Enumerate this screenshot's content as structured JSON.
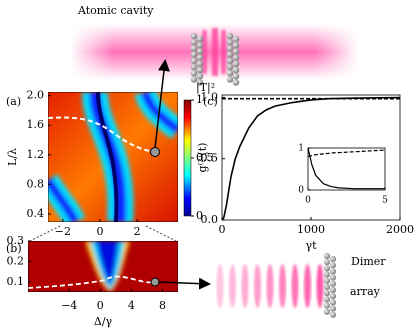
{
  "labels": {
    "cavity": "Atomic cavity",
    "dimer": "Dimer",
    "array": "array"
  },
  "chart_data": [
    {
      "type": "heatmap",
      "panel": "(a)",
      "y_label": "L/λ",
      "xlim": [
        -2.8,
        4.2
      ],
      "xticks": [
        {
          "value": -2,
          "label": "−2"
        },
        0,
        2
      ],
      "ylim": [
        0.29,
        2.05
      ],
      "yticks": [
        0.4,
        0.8,
        1.2,
        1.6,
        {
          "value": 2,
          "label": "2.0"
        }
      ],
      "colorbar": {
        "label": "|T|²",
        "lim": [
          0,
          1
        ],
        "ticks": [
          0,
          0.5,
          1
        ]
      }
    },
    {
      "type": "heatmap",
      "panel": "(b)",
      "x_label": "Δ/γ",
      "xlim": [
        -9.3,
        10
      ],
      "xticks": [
        {
          "value": -4,
          "label": "−4"
        },
        0,
        4,
        8
      ],
      "ylim": [
        0.05,
        0.3
      ],
      "yticks": [
        0.1,
        0.2,
        0.3
      ]
    },
    {
      "type": "line",
      "panel": "(c)",
      "x_label": "γt",
      "y_label": "g⁽²⁾(t)",
      "x": [
        0,
        20,
        50,
        100,
        150,
        200,
        300,
        400,
        500,
        600,
        800,
        1000,
        1200,
        1500,
        2000
      ],
      "xlim": [
        0,
        2000
      ],
      "xticks": [
        0,
        1000,
        2000
      ],
      "ylim": [
        0,
        1.02
      ],
      "yticks": [
        {
          "value": 0,
          "label": "0.0"
        },
        0.5,
        {
          "value": 1,
          "label": "1.0"
        }
      ],
      "series": [
        {
          "color": "#000000",
          "dash": false,
          "values": [
            0,
            0.02,
            0.12,
            0.35,
            0.5,
            0.6,
            0.75,
            0.85,
            0.9,
            0.93,
            0.96,
            0.98,
            0.99,
            0.995,
            1.0
          ]
        },
        {
          "color": "#000000",
          "dash": true,
          "values": [
            0.99,
            0.99,
            0.99,
            0.99,
            0.99,
            0.99,
            0.99,
            0.99,
            0.99,
            0.99,
            0.99,
            0.99,
            0.99,
            0.99,
            0.99
          ]
        }
      ]
    },
    {
      "type": "line",
      "x": [
        0,
        0.25,
        0.5,
        1,
        1.5,
        2,
        3,
        4,
        5
      ],
      "xlim": [
        0,
        5
      ],
      "xticks": [
        0,
        5
      ],
      "ylim": [
        0,
        1
      ],
      "yticks": [
        0,
        1
      ],
      "series": [
        {
          "color": "#000000",
          "dash": false,
          "values": [
            1,
            0.6,
            0.35,
            0.15,
            0.08,
            0.05,
            0.03,
            0.03,
            0.03
          ]
        },
        {
          "color": "#000000",
          "dash": true,
          "values": [
            0.8,
            0.82,
            0.84,
            0.86,
            0.88,
            0.89,
            0.91,
            0.93,
            0.95
          ]
        }
      ]
    }
  ]
}
